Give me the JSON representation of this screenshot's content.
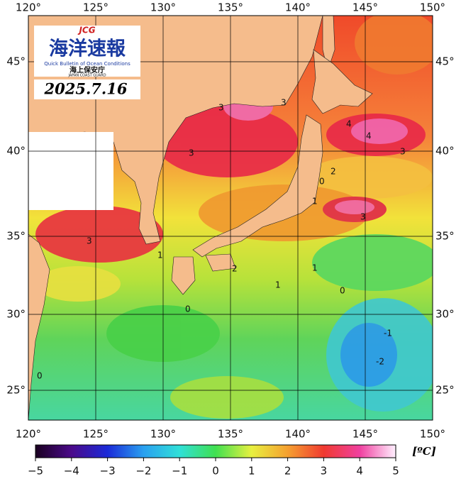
{
  "header": {
    "mark": "JCG",
    "title": "海洋速報",
    "subtitle": "Quick Bulletin of Ocean Conditions",
    "agency": "海上保安庁",
    "agency_en": "JAPAN COAST GUARD",
    "date": "2025.7.16"
  },
  "map": {
    "lon_labels": [
      "120°",
      "125°",
      "130°",
      "135°",
      "140°",
      "145°",
      "150°"
    ],
    "lat_labels": [
      "45°",
      "40°",
      "35°",
      "30°",
      "25°"
    ],
    "contour_labels": [
      "3",
      "3",
      "3",
      "4",
      "4",
      "3",
      "2",
      "0",
      "1",
      "3",
      "3",
      "2",
      "1",
      "1",
      "1",
      "0",
      "0",
      "-1",
      "-2",
      "0"
    ]
  },
  "colorbar": {
    "ticks": [
      "−5",
      "−4",
      "−3",
      "−2",
      "−1",
      "0",
      "1",
      "2",
      "3",
      "4",
      "5"
    ],
    "unit": "[ºC]"
  }
}
